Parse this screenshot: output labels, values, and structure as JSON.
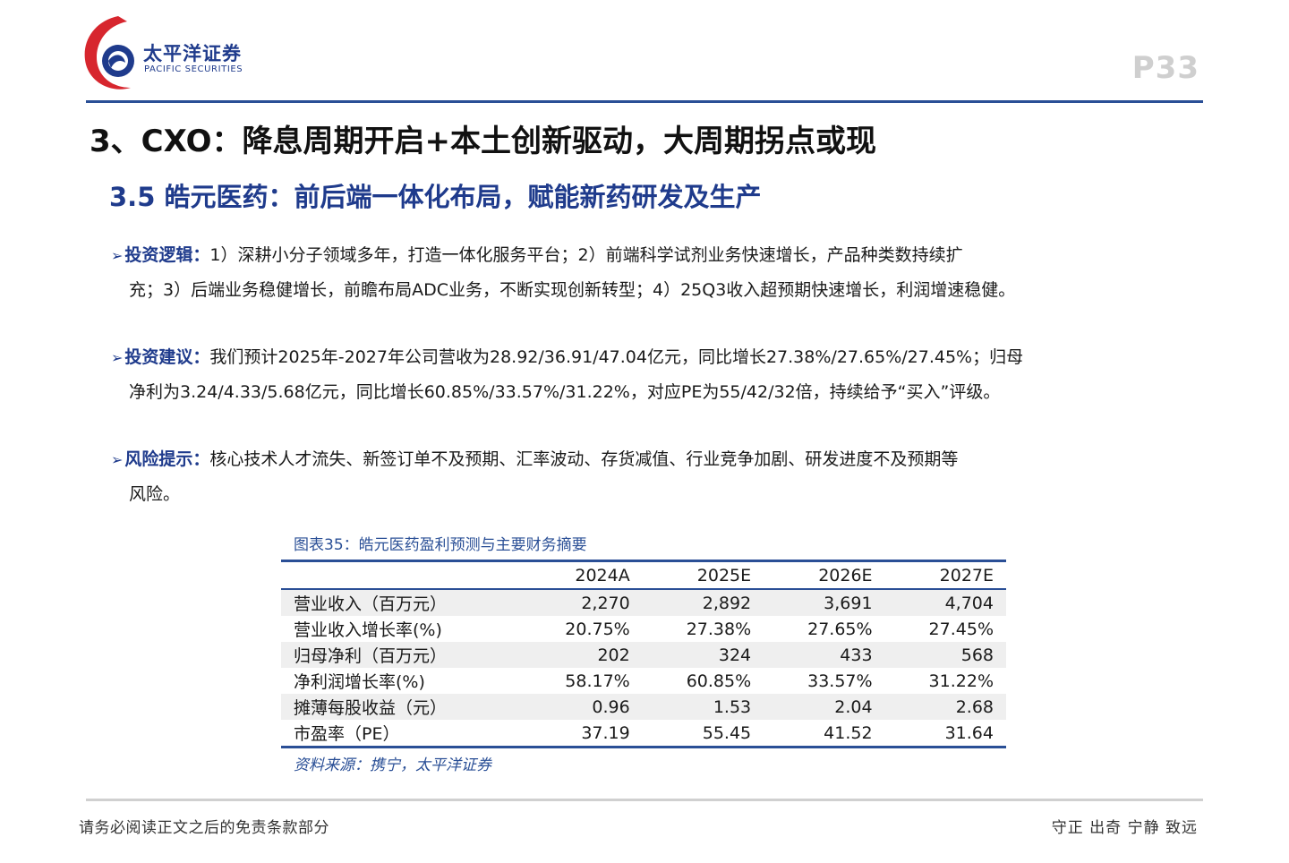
{
  "header": {
    "brand_cn": "太平洋证券",
    "brand_en": "PACIFIC SECURITIES",
    "page_number": "P33"
  },
  "headings": {
    "h1": "3、CXO：降息周期开启+本土创新驱动，大周期拐点或现",
    "h2": "3.5 皓元医药：前后端一体化布局，赋能新药研发及生产"
  },
  "sections": [
    {
      "label": "投资逻辑：",
      "line1": "1）深耕小分子领域多年，打造一体化服务平台；2）前端科学试剂业务快速增长，产品种类数持续扩",
      "line2": "充；3）后端业务稳健增长，前瞻布局ADC业务，不断实现创新转型；4）25Q3收入超预期快速增长，利润增速稳健。"
    },
    {
      "label": "投资建议：",
      "line1": "我们预计2025年-2027年公司营收为28.92/36.91/47.04亿元，同比增长27.38%/27.65%/27.45%；归母",
      "line2": "净利为3.24/4.33/5.68亿元，同比增长60.85%/33.57%/31.22%，对应PE为55/42/32倍，持续给予“买入”评级。"
    },
    {
      "label": "风险提示：",
      "line1": "核心技术人才流失、新签订单不及预期、汇率波动、存货减值、行业竞争加剧、研发进度不及预期等",
      "line2": "风险。"
    }
  ],
  "table": {
    "title": "图表35：皓元医药盈利预测与主要财务摘要",
    "columns": [
      "",
      "2024A",
      "2025E",
      "2026E",
      "2027E"
    ],
    "rows": [
      [
        "营业收入（百万元）",
        "2,270",
        "2,892",
        "3,691",
        "4,704"
      ],
      [
        "营业收入增长率(%)",
        "20.75%",
        "27.38%",
        "27.65%",
        "27.45%"
      ],
      [
        "归母净利（百万元）",
        "202",
        "324",
        "433",
        "568"
      ],
      [
        "净利润增长率(%)",
        "58.17%",
        "60.85%",
        "33.57%",
        "31.22%"
      ],
      [
        "摊薄每股收益（元）",
        "0.96",
        "1.53",
        "2.04",
        "2.68"
      ],
      [
        "市盈率（PE）",
        "37.19",
        "55.45",
        "41.52",
        "31.64"
      ]
    ],
    "source": "资料来源：携宁，太平洋证券"
  },
  "footer": {
    "disclaimer": "请务必阅读正文之后的免责条款部分",
    "motto": "守正 出奇 宁静 致远"
  },
  "colors": {
    "brand_blue": "#1f3b8c",
    "rule_blue": "#2a4f96",
    "logo_red": "#d7262e"
  },
  "icons": {
    "logo": "pacific-securities-logo-icon",
    "bullet": "arrow-bullet-icon"
  }
}
